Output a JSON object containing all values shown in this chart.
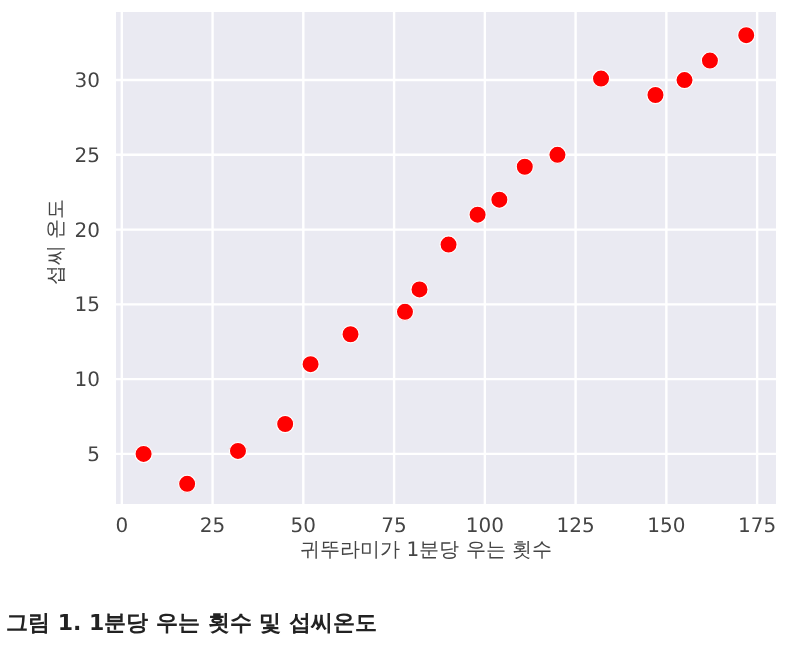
{
  "chart_data": {
    "type": "scatter",
    "title": "그림 1. 1분당 우는 횟수 및 섭씨온도",
    "xlabel": "귀뚜라미가 1분당 우는 횟수",
    "ylabel": "섭씨 온도",
    "x": [
      6,
      18,
      32,
      45,
      52,
      63,
      78,
      82,
      90,
      98,
      104,
      111,
      120,
      132,
      147,
      155,
      162,
      172
    ],
    "series": [
      {
        "color": "#ff0000",
        "values": [
          5,
          3,
          5.2,
          7,
          11,
          13,
          14.5,
          16,
          19,
          21,
          22,
          24.2,
          25,
          30.1,
          29,
          30,
          31.3,
          33
        ]
      }
    ],
    "xlim": [
      -1.6,
      180.2
    ],
    "ylim": [
      1.65,
      34.55
    ],
    "xticks": [
      0,
      25,
      50,
      75,
      100,
      125,
      150,
      175
    ],
    "yticks": [
      5,
      10,
      15,
      20,
      25,
      30
    ],
    "grid": true,
    "marker": "circle"
  }
}
